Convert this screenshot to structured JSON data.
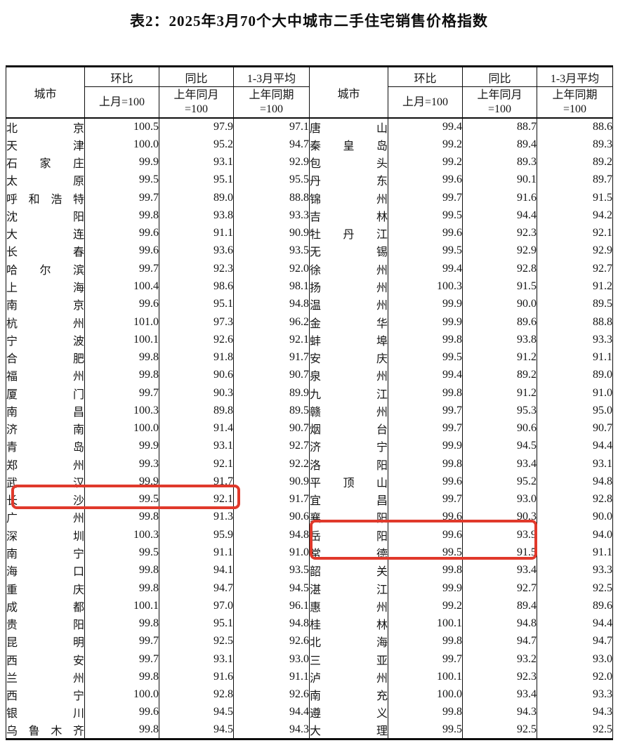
{
  "title": "表2：2025年3月70个大中城市二手住宅销售价格指数",
  "colors": {
    "highlight_box": "#e0392b",
    "table_border": "#0d0d0d",
    "text": "#141414"
  },
  "table": {
    "header": {
      "city": "城市",
      "mom": {
        "label": "环比",
        "sub": "上月=100"
      },
      "yoy": {
        "label": "同比",
        "sub": "上年同月\n=100"
      },
      "avg": {
        "label": "1-3月平均",
        "sub": "上年同期\n=100"
      }
    },
    "left_rows": [
      {
        "city": "北京",
        "mom": "100.5",
        "yoy": "97.9",
        "avg": "97.1"
      },
      {
        "city": "天津",
        "mom": "100.0",
        "yoy": "95.2",
        "avg": "94.7"
      },
      {
        "city": "石家庄",
        "mom": "99.9",
        "yoy": "93.1",
        "avg": "92.9"
      },
      {
        "city": "太原",
        "mom": "99.5",
        "yoy": "95.1",
        "avg": "95.5"
      },
      {
        "city": "呼和浩特",
        "mom": "99.7",
        "yoy": "89.0",
        "avg": "88.8"
      },
      {
        "city": "沈阳",
        "mom": "99.8",
        "yoy": "93.8",
        "avg": "93.3"
      },
      {
        "city": "大连",
        "mom": "99.6",
        "yoy": "91.1",
        "avg": "90.9"
      },
      {
        "city": "长春",
        "mom": "99.6",
        "yoy": "93.6",
        "avg": "93.5"
      },
      {
        "city": "哈尔滨",
        "mom": "99.7",
        "yoy": "92.3",
        "avg": "92.0"
      },
      {
        "city": "上海",
        "mom": "100.4",
        "yoy": "98.6",
        "avg": "98.1"
      },
      {
        "city": "南京",
        "mom": "99.6",
        "yoy": "95.1",
        "avg": "94.8"
      },
      {
        "city": "杭州",
        "mom": "101.0",
        "yoy": "97.3",
        "avg": "96.2"
      },
      {
        "city": "宁波",
        "mom": "100.1",
        "yoy": "92.6",
        "avg": "92.1"
      },
      {
        "city": "合肥",
        "mom": "99.8",
        "yoy": "91.8",
        "avg": "91.7"
      },
      {
        "city": "福州",
        "mom": "99.8",
        "yoy": "90.6",
        "avg": "90.7"
      },
      {
        "city": "厦门",
        "mom": "99.7",
        "yoy": "90.3",
        "avg": "89.9"
      },
      {
        "city": "南昌",
        "mom": "100.3",
        "yoy": "89.8",
        "avg": "89.5"
      },
      {
        "city": "济南",
        "mom": "100.0",
        "yoy": "91.4",
        "avg": "90.7"
      },
      {
        "city": "青岛",
        "mom": "99.9",
        "yoy": "93.1",
        "avg": "92.7"
      },
      {
        "city": "郑州",
        "mom": "99.3",
        "yoy": "92.1",
        "avg": "92.2"
      },
      {
        "city": "武汉",
        "mom": "99.9",
        "yoy": "91.7",
        "avg": "90.9"
      },
      {
        "city": "长沙",
        "mom": "99.5",
        "yoy": "92.1",
        "avg": "91.7"
      },
      {
        "city": "广州",
        "mom": "99.8",
        "yoy": "91.3",
        "avg": "90.6"
      },
      {
        "city": "深圳",
        "mom": "100.3",
        "yoy": "95.9",
        "avg": "94.8"
      },
      {
        "city": "南宁",
        "mom": "99.5",
        "yoy": "91.1",
        "avg": "91.0"
      },
      {
        "city": "海口",
        "mom": "99.8",
        "yoy": "94.1",
        "avg": "93.5"
      },
      {
        "city": "重庆",
        "mom": "99.8",
        "yoy": "94.7",
        "avg": "94.5"
      },
      {
        "city": "成都",
        "mom": "100.1",
        "yoy": "97.0",
        "avg": "96.1"
      },
      {
        "city": "贵阳",
        "mom": "99.8",
        "yoy": "95.1",
        "avg": "94.8"
      },
      {
        "city": "昆明",
        "mom": "99.7",
        "yoy": "92.5",
        "avg": "92.6"
      },
      {
        "city": "西安",
        "mom": "99.7",
        "yoy": "93.1",
        "avg": "93.0"
      },
      {
        "city": "兰州",
        "mom": "99.8",
        "yoy": "91.6",
        "avg": "91.1"
      },
      {
        "city": "西宁",
        "mom": "100.0",
        "yoy": "92.8",
        "avg": "92.6"
      },
      {
        "city": "银川",
        "mom": "99.6",
        "yoy": "94.5",
        "avg": "94.4"
      },
      {
        "city": "乌鲁木齐",
        "mom": "99.8",
        "yoy": "94.5",
        "avg": "94.3"
      }
    ],
    "right_rows": [
      {
        "city": "唐山",
        "mom": "99.4",
        "yoy": "88.7",
        "avg": "88.6"
      },
      {
        "city": "秦皇岛",
        "mom": "99.2",
        "yoy": "89.4",
        "avg": "89.3"
      },
      {
        "city": "包头",
        "mom": "99.2",
        "yoy": "89.3",
        "avg": "89.2"
      },
      {
        "city": "丹东",
        "mom": "99.6",
        "yoy": "90.1",
        "avg": "89.7"
      },
      {
        "city": "锦州",
        "mom": "99.7",
        "yoy": "91.6",
        "avg": "91.5"
      },
      {
        "city": "吉林",
        "mom": "99.5",
        "yoy": "94.4",
        "avg": "94.2"
      },
      {
        "city": "牡丹江",
        "mom": "99.6",
        "yoy": "92.3",
        "avg": "92.1"
      },
      {
        "city": "无锡",
        "mom": "99.5",
        "yoy": "92.9",
        "avg": "92.9"
      },
      {
        "city": "徐州",
        "mom": "99.4",
        "yoy": "92.8",
        "avg": "92.7"
      },
      {
        "city": "扬州",
        "mom": "100.3",
        "yoy": "91.5",
        "avg": "91.2"
      },
      {
        "city": "温州",
        "mom": "99.9",
        "yoy": "90.0",
        "avg": "89.5"
      },
      {
        "city": "金华",
        "mom": "99.9",
        "yoy": "89.6",
        "avg": "88.8"
      },
      {
        "city": "蚌埠",
        "mom": "99.8",
        "yoy": "93.8",
        "avg": "93.3"
      },
      {
        "city": "安庆",
        "mom": "99.5",
        "yoy": "91.2",
        "avg": "91.1"
      },
      {
        "city": "泉州",
        "mom": "99.4",
        "yoy": "89.2",
        "avg": "89.0"
      },
      {
        "city": "九江",
        "mom": "99.8",
        "yoy": "91.2",
        "avg": "91.0"
      },
      {
        "city": "赣州",
        "mom": "99.7",
        "yoy": "95.3",
        "avg": "95.0"
      },
      {
        "city": "烟台",
        "mom": "99.7",
        "yoy": "90.6",
        "avg": "90.7"
      },
      {
        "city": "济宁",
        "mom": "99.9",
        "yoy": "94.5",
        "avg": "94.4"
      },
      {
        "city": "洛阳",
        "mom": "99.8",
        "yoy": "93.4",
        "avg": "93.1"
      },
      {
        "city": "平顶山",
        "mom": "99.6",
        "yoy": "95.2",
        "avg": "94.8"
      },
      {
        "city": "宜昌",
        "mom": "99.7",
        "yoy": "93.0",
        "avg": "92.8"
      },
      {
        "city": "襄阳",
        "mom": "99.6",
        "yoy": "90.3",
        "avg": "90.0"
      },
      {
        "city": "岳阳",
        "mom": "99.6",
        "yoy": "93.9",
        "avg": "94.0"
      },
      {
        "city": "常德",
        "mom": "99.5",
        "yoy": "91.5",
        "avg": "91.1"
      },
      {
        "city": "韶关",
        "mom": "99.8",
        "yoy": "93.4",
        "avg": "93.3"
      },
      {
        "city": "湛江",
        "mom": "99.9",
        "yoy": "92.7",
        "avg": "92.5"
      },
      {
        "city": "惠州",
        "mom": "99.2",
        "yoy": "89.4",
        "avg": "89.6"
      },
      {
        "city": "桂林",
        "mom": "100.1",
        "yoy": "94.8",
        "avg": "94.4"
      },
      {
        "city": "北海",
        "mom": "99.8",
        "yoy": "94.7",
        "avg": "94.7"
      },
      {
        "city": "三亚",
        "mom": "99.7",
        "yoy": "93.2",
        "avg": "93.0"
      },
      {
        "city": "泸州",
        "mom": "100.1",
        "yoy": "92.3",
        "avg": "92.0"
      },
      {
        "city": "南充",
        "mom": "100.0",
        "yoy": "93.4",
        "avg": "93.3"
      },
      {
        "city": "遵义",
        "mom": "99.8",
        "yoy": "94.3",
        "avg": "94.3"
      },
      {
        "city": "大理",
        "mom": "99.5",
        "yoy": "92.5",
        "avg": "92.5"
      }
    ],
    "highlights": [
      {
        "cities": [
          "长沙"
        ],
        "covered_columns": [
          "城市",
          "环比",
          "同比"
        ]
      },
      {
        "cities": [
          "岳阳",
          "常德"
        ],
        "covered_columns": [
          "城市",
          "环比",
          "同比"
        ]
      }
    ]
  }
}
